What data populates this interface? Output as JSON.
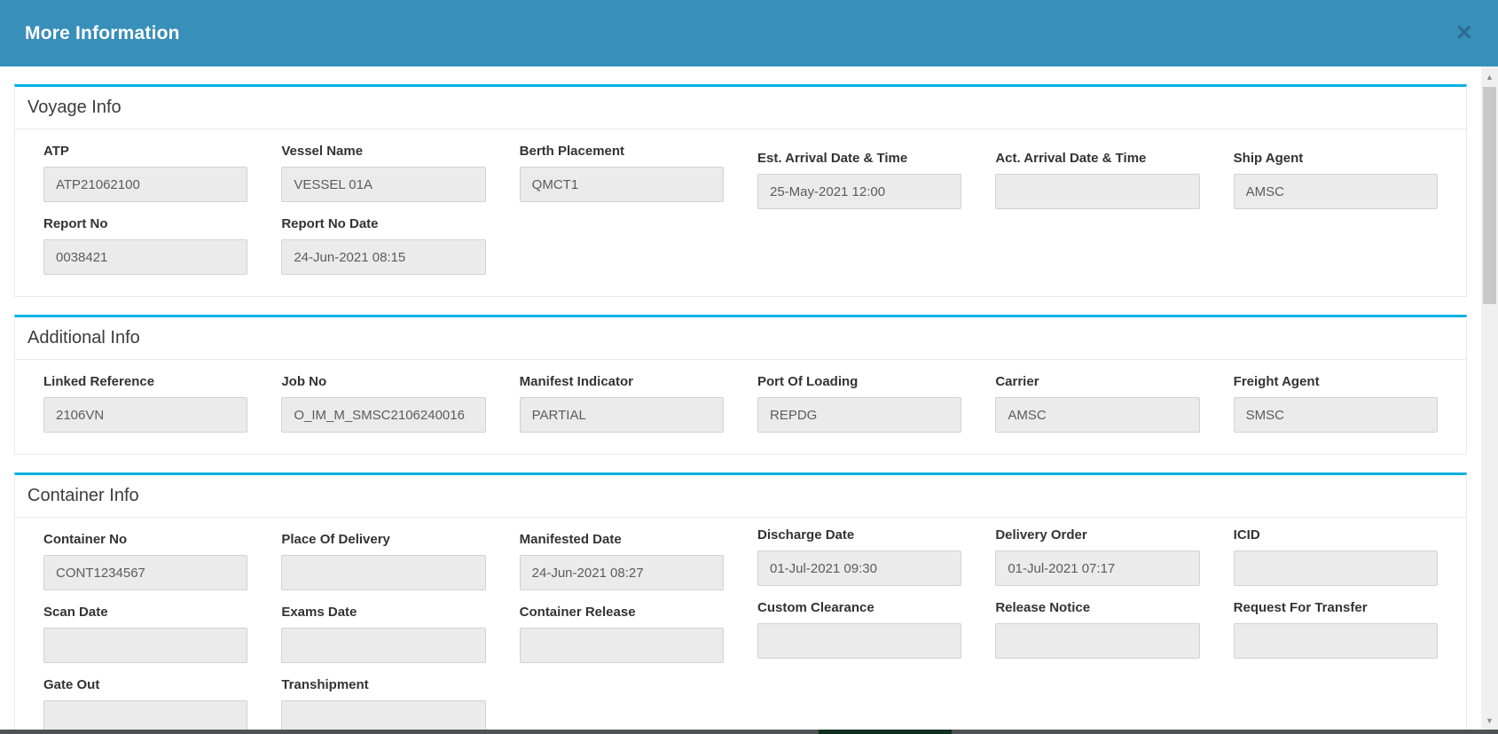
{
  "modal": {
    "title": "More Information",
    "close_icon": "✕",
    "header_color": "#388fb9",
    "accent_color": "#00b2e2"
  },
  "scrollbar": {
    "up_icon": "▲",
    "down_icon": "▼"
  },
  "sections": [
    {
      "title": "Voyage Info",
      "fields": [
        {
          "label": "ATP",
          "value": "ATP21062100"
        },
        {
          "label": "Vessel Name",
          "value": "VESSEL 01A"
        },
        {
          "label": "Berth Placement",
          "value": "QMCT1"
        },
        {
          "label": "Est. Arrival Date & Time",
          "value": "25-May-2021 12:00"
        },
        {
          "label": "Act. Arrival Date & Time",
          "value": ""
        },
        {
          "label": "Ship Agent",
          "value": "AMSC"
        },
        {
          "label": "Report No",
          "value": "0038421"
        },
        {
          "label": "Report No Date",
          "value": "24-Jun-2021 08:15"
        }
      ]
    },
    {
      "title": "Additional Info",
      "fields": [
        {
          "label": "Linked Reference",
          "value": "2106VN"
        },
        {
          "label": "Job No",
          "value": "O_IM_M_SMSC2106240016"
        },
        {
          "label": "Manifest Indicator",
          "value": "PARTIAL"
        },
        {
          "label": "Port Of Loading",
          "value": "REPDG"
        },
        {
          "label": "Carrier",
          "value": "AMSC"
        },
        {
          "label": "Freight Agent",
          "value": "SMSC"
        }
      ]
    },
    {
      "title": "Container Info",
      "fields": [
        {
          "label": "Container No",
          "value": "CONT1234567"
        },
        {
          "label": "Place Of Delivery",
          "value": ""
        },
        {
          "label": "Manifested Date",
          "value": "24-Jun-2021 08:27"
        },
        {
          "label": "Discharge Date",
          "value": "01-Jul-2021 09:30"
        },
        {
          "label": "Delivery Order",
          "value": "01-Jul-2021 07:17"
        },
        {
          "label": "ICID",
          "value": ""
        },
        {
          "label": "Scan Date",
          "value": ""
        },
        {
          "label": "Exams Date",
          "value": ""
        },
        {
          "label": "Container Release",
          "value": ""
        },
        {
          "label": "Custom Clearance",
          "value": ""
        },
        {
          "label": "Release Notice",
          "value": ""
        },
        {
          "label": "Request For Transfer",
          "value": ""
        },
        {
          "label": "Gate Out",
          "value": ""
        },
        {
          "label": "Transhipment",
          "value": ""
        }
      ]
    }
  ]
}
